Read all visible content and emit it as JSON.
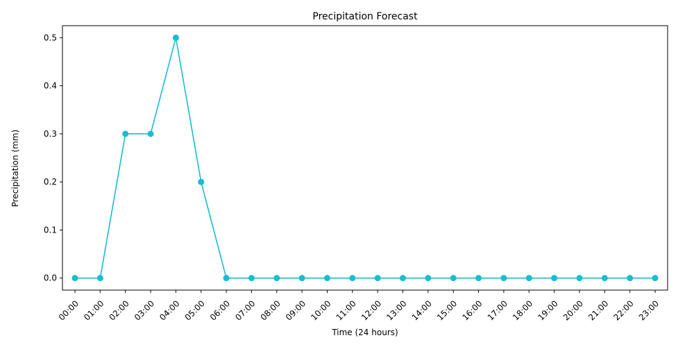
{
  "chart_data": {
    "type": "line",
    "title": "Precipitation Forecast",
    "xlabel": "Time (24 hours)",
    "ylabel": "Precipitation (mm)",
    "categories": [
      "00:00",
      "01:00",
      "02:00",
      "03:00",
      "04:00",
      "05:00",
      "06:00",
      "07:00",
      "08:00",
      "09:00",
      "10:00",
      "11:00",
      "12:00",
      "13:00",
      "14:00",
      "15:00",
      "16:00",
      "17:00",
      "18:00",
      "19:00",
      "20:00",
      "21:00",
      "22:00",
      "23:00"
    ],
    "values": [
      0.0,
      0.0,
      0.3,
      0.3,
      0.5,
      0.2,
      0.0,
      0.0,
      0.0,
      0.0,
      0.0,
      0.0,
      0.0,
      0.0,
      0.0,
      0.0,
      0.0,
      0.0,
      0.0,
      0.0,
      0.0,
      0.0,
      0.0,
      0.0
    ],
    "yticks": [
      0.0,
      0.1,
      0.2,
      0.3,
      0.4,
      0.5
    ],
    "ytick_labels": [
      "0.0",
      "0.1",
      "0.2",
      "0.3",
      "0.4",
      "0.5"
    ],
    "ylim": [
      -0.025,
      0.525
    ],
    "grid": false,
    "marker": "circle",
    "colors": {
      "series": "#17becf",
      "axes": "#000000"
    }
  }
}
